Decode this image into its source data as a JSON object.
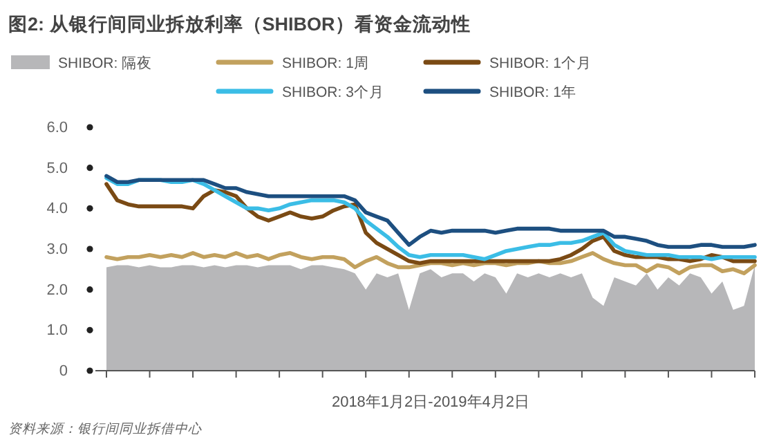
{
  "chart_data": {
    "type": "line",
    "title": "图2: 从银行间同业拆放利率（SHIBOR）看资金流动性",
    "xlabel": "2018年1月2日-2019年4月2日",
    "annotations": [
      "资料来源：银行间同业拆借中心"
    ],
    "categories": [
      null,
      null,
      null,
      null,
      null,
      null,
      null,
      null,
      null,
      null,
      null,
      null,
      null,
      null,
      null,
      null,
      null,
      null,
      null,
      null,
      null,
      null,
      null,
      null,
      null,
      null,
      null,
      null,
      null,
      null,
      null,
      null,
      null,
      null,
      null,
      null,
      null,
      null,
      null,
      null,
      null,
      null,
      null,
      null,
      null,
      null,
      null,
      null,
      null,
      null,
      null,
      null,
      null,
      null,
      null,
      null,
      null,
      null,
      null,
      null,
      null
    ],
    "ylim": [
      0,
      6.0
    ],
    "yticks": [
      {
        "value": 0,
        "label": "0"
      },
      {
        "value": 1,
        "label": "1.0"
      },
      {
        "value": 2,
        "label": "2.0"
      },
      {
        "value": 3,
        "label": "3.0"
      },
      {
        "value": 4,
        "label": "4.0"
      },
      {
        "value": 5,
        "label": "5.0"
      },
      {
        "value": 6,
        "label": "6.0"
      }
    ],
    "grid": false,
    "legend": "top",
    "marker": "none",
    "line_style": "solid",
    "series": [
      {
        "name": "SHIBOR: 隔夜",
        "type": "area",
        "color": "#b7b7b9",
        "values": [
          2.55,
          2.6,
          2.6,
          2.55,
          2.6,
          2.55,
          2.55,
          2.6,
          2.6,
          2.55,
          2.6,
          2.55,
          2.6,
          2.6,
          2.55,
          2.6,
          2.6,
          2.6,
          2.5,
          2.6,
          2.6,
          2.55,
          2.5,
          2.4,
          2.0,
          2.4,
          2.3,
          2.4,
          1.5,
          2.4,
          2.5,
          2.3,
          2.4,
          2.4,
          2.2,
          2.4,
          2.3,
          1.9,
          2.4,
          2.3,
          2.4,
          2.3,
          2.4,
          2.3,
          2.4,
          1.8,
          1.6,
          2.3,
          2.2,
          2.1,
          2.4,
          2.0,
          2.3,
          2.1,
          2.4,
          2.3,
          1.9,
          2.2,
          1.5,
          1.6,
          2.6
        ]
      },
      {
        "name": "SHIBOR: 1周",
        "color": "#c2a15e",
        "values": [
          2.8,
          2.75,
          2.8,
          2.8,
          2.85,
          2.8,
          2.85,
          2.8,
          2.9,
          2.8,
          2.85,
          2.8,
          2.9,
          2.8,
          2.85,
          2.75,
          2.85,
          2.9,
          2.8,
          2.75,
          2.8,
          2.8,
          2.75,
          2.55,
          2.7,
          2.8,
          2.65,
          2.55,
          2.55,
          2.6,
          2.65,
          2.65,
          2.6,
          2.65,
          2.6,
          2.65,
          2.65,
          2.6,
          2.65,
          2.65,
          2.7,
          2.65,
          2.65,
          2.7,
          2.8,
          2.9,
          2.75,
          2.65,
          2.6,
          2.6,
          2.45,
          2.6,
          2.55,
          2.4,
          2.55,
          2.6,
          2.6,
          2.45,
          2.5,
          2.4,
          2.6
        ]
      },
      {
        "name": "SHIBOR: 1个月",
        "color": "#7a4a14",
        "values": [
          4.6,
          4.2,
          4.1,
          4.05,
          4.05,
          4.05,
          4.05,
          4.05,
          4.0,
          4.3,
          4.45,
          4.4,
          4.3,
          4.0,
          3.8,
          3.7,
          3.8,
          3.9,
          3.8,
          3.75,
          3.8,
          3.95,
          4.05,
          4.1,
          3.4,
          3.15,
          3.0,
          2.85,
          2.7,
          2.65,
          2.7,
          2.7,
          2.7,
          2.7,
          2.7,
          2.7,
          2.7,
          2.7,
          2.7,
          2.7,
          2.7,
          2.7,
          2.75,
          2.85,
          3.0,
          3.2,
          3.3,
          2.95,
          2.85,
          2.8,
          2.8,
          2.8,
          2.75,
          2.75,
          2.7,
          2.75,
          2.85,
          2.8,
          2.7,
          2.7,
          2.7
        ]
      },
      {
        "name": "SHIBOR: 3个月",
        "color": "#3bbde6",
        "values": [
          4.75,
          4.6,
          4.6,
          4.7,
          4.7,
          4.7,
          4.65,
          4.65,
          4.7,
          4.6,
          4.45,
          4.3,
          4.15,
          4.0,
          4.0,
          3.95,
          4.0,
          4.1,
          4.15,
          4.2,
          4.2,
          4.2,
          4.15,
          4.0,
          3.7,
          3.5,
          3.3,
          3.05,
          2.85,
          2.8,
          2.85,
          2.85,
          2.85,
          2.85,
          2.8,
          2.75,
          2.85,
          2.95,
          3.0,
          3.05,
          3.1,
          3.1,
          3.15,
          3.15,
          3.2,
          3.3,
          3.4,
          3.1,
          2.95,
          2.9,
          2.85,
          2.85,
          2.85,
          2.8,
          2.8,
          2.8,
          2.75,
          2.8,
          2.8,
          2.8,
          2.8
        ]
      },
      {
        "name": "SHIBOR: 1年",
        "color": "#1d4f80",
        "values": [
          4.8,
          4.65,
          4.65,
          4.7,
          4.7,
          4.7,
          4.7,
          4.7,
          4.7,
          4.7,
          4.6,
          4.5,
          4.5,
          4.4,
          4.35,
          4.3,
          4.3,
          4.3,
          4.3,
          4.3,
          4.3,
          4.3,
          4.3,
          4.2,
          3.9,
          3.8,
          3.7,
          3.4,
          3.1,
          3.3,
          3.45,
          3.4,
          3.45,
          3.45,
          3.45,
          3.45,
          3.4,
          3.45,
          3.5,
          3.5,
          3.5,
          3.5,
          3.45,
          3.45,
          3.45,
          3.45,
          3.45,
          3.3,
          3.3,
          3.25,
          3.2,
          3.1,
          3.05,
          3.05,
          3.05,
          3.1,
          3.1,
          3.05,
          3.05,
          3.05,
          3.1
        ]
      }
    ]
  }
}
